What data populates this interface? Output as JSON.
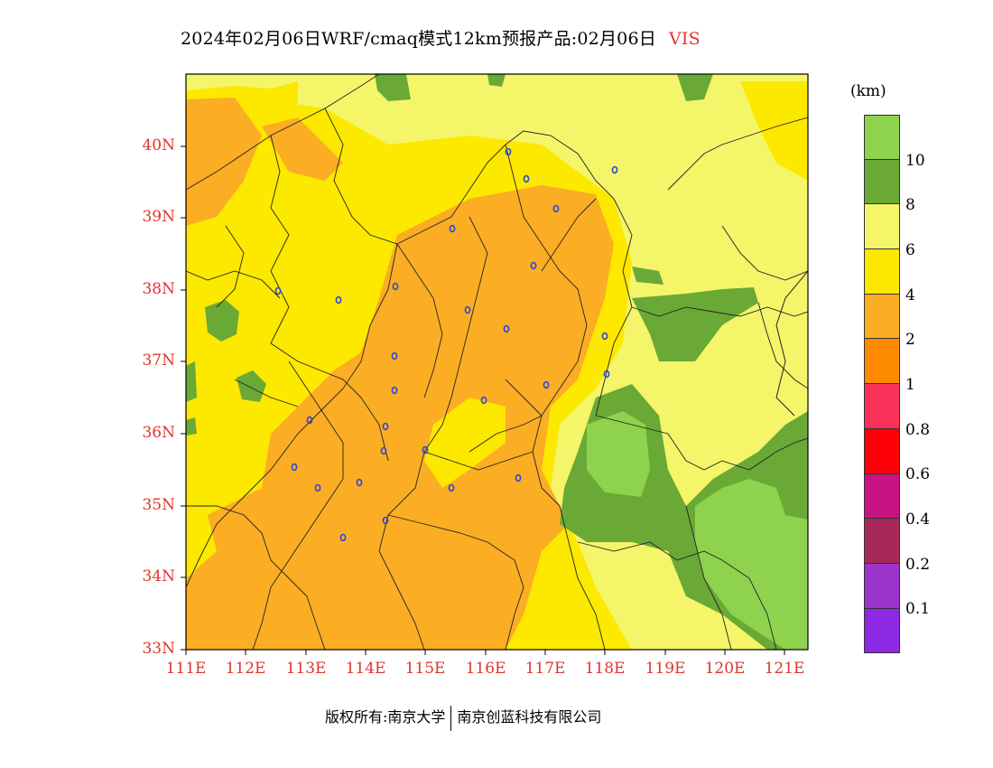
{
  "title": {
    "main": "2024年02月06日WRF/cmaq模式12km预报产品:02月06日",
    "variable": "VIS"
  },
  "unit": "(km)",
  "latitude_labels": [
    "40N",
    "39N",
    "38N",
    "37N",
    "36N",
    "35N",
    "34N",
    "33N"
  ],
  "longitude_labels": [
    "111E",
    "112E",
    "113E",
    "114E",
    "115E",
    "116E",
    "117E",
    "118E",
    "119E",
    "120E",
    "121E"
  ],
  "legend": {
    "colors": [
      "#8fd24e",
      "#6aa935",
      "#f4f569",
      "#fde800",
      "#fbad24",
      "#fd8a00",
      "#fa3158",
      "#fc0107",
      "#c81382",
      "#a8285a",
      "#9a34cb",
      "#8e2ae6"
    ],
    "labels": [
      "10",
      "8",
      "6",
      "4",
      "2",
      "1",
      "0.8",
      "0.6",
      "0.4",
      "0.2",
      "0.1"
    ]
  },
  "footer": {
    "left": "版权所有:南京大学",
    "right": "南京创蓝科技有限公司"
  },
  "colors": {
    "axis_label": "#e0342e",
    "station": "#2a49d8",
    "boundary": "#222222"
  }
}
